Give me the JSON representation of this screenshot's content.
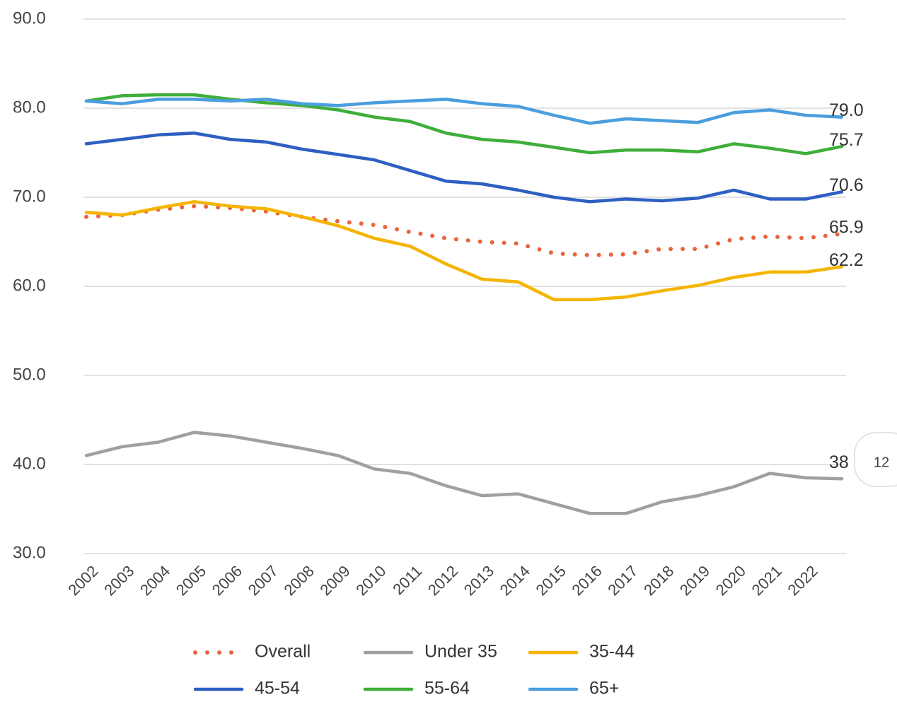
{
  "chart_data": {
    "type": "line",
    "categories": [
      "2002",
      "2003",
      "2004",
      "2005",
      "2006",
      "2007",
      "2008",
      "2009",
      "2010",
      "2011",
      "2012",
      "2013",
      "2014",
      "2015",
      "2016",
      "2017",
      "2018",
      "2019",
      "2020",
      "2021",
      "2022",
      null
    ],
    "series": [
      {
        "name": "Overall",
        "color": "#e8643c",
        "dash": "dotted",
        "values": [
          67.8,
          68.0,
          68.6,
          69.0,
          68.8,
          68.4,
          67.8,
          67.3,
          66.9,
          66.1,
          65.4,
          65.0,
          64.8,
          63.7,
          63.5,
          63.6,
          64.2,
          64.2,
          65.3,
          65.6,
          65.4,
          65.9
        ],
        "value_labels": [
          null,
          null,
          null,
          null,
          null,
          null,
          null,
          null,
          null,
          null,
          null,
          null,
          null,
          null,
          null,
          null,
          null,
          null,
          null,
          null,
          null,
          "65.9"
        ]
      },
      {
        "name": "Under 35",
        "color": "#a0a0a0",
        "values": [
          41.0,
          42.0,
          42.5,
          43.6,
          43.2,
          42.5,
          41.8,
          41.0,
          39.5,
          39.0,
          37.6,
          36.5,
          36.7,
          35.6,
          34.5,
          34.5,
          35.8,
          36.5,
          37.5,
          39.0,
          38.5,
          38.4
        ],
        "value_labels": [
          null,
          null,
          null,
          null,
          null,
          null,
          null,
          null,
          null,
          null,
          null,
          null,
          null,
          null,
          null,
          null,
          null,
          null,
          null,
          null,
          null,
          "38"
        ]
      },
      {
        "name": "35-44",
        "color": "#f5b400",
        "values": [
          68.3,
          68.0,
          68.8,
          69.5,
          69.0,
          68.7,
          67.8,
          66.8,
          65.4,
          64.5,
          62.5,
          60.8,
          60.5,
          58.5,
          58.5,
          58.8,
          59.5,
          60.1,
          61.0,
          61.6,
          61.6,
          62.2
        ],
        "value_labels": [
          null,
          null,
          null,
          null,
          null,
          null,
          null,
          null,
          null,
          null,
          null,
          null,
          null,
          null,
          null,
          null,
          null,
          null,
          null,
          null,
          null,
          "62.2"
        ]
      },
      {
        "name": "45-54",
        "color": "#2e5fc2",
        "values": [
          76.0,
          76.5,
          77.0,
          77.2,
          76.5,
          76.2,
          75.4,
          74.8,
          74.2,
          73.0,
          71.8,
          71.5,
          70.8,
          70.0,
          69.5,
          69.8,
          69.6,
          69.9,
          70.8,
          69.8,
          69.8,
          70.6
        ],
        "value_labels": [
          null,
          null,
          null,
          null,
          null,
          null,
          null,
          null,
          null,
          null,
          null,
          null,
          null,
          null,
          null,
          null,
          null,
          null,
          null,
          null,
          null,
          "70.6"
        ]
      },
      {
        "name": "55-64",
        "color": "#3fae3a",
        "values": [
          80.8,
          81.4,
          81.5,
          81.5,
          81.0,
          80.6,
          80.3,
          79.8,
          79.0,
          78.5,
          77.2,
          76.5,
          76.2,
          75.6,
          75.0,
          75.3,
          75.3,
          75.1,
          76.0,
          75.5,
          74.9,
          75.7
        ],
        "value_labels": [
          null,
          null,
          null,
          null,
          null,
          null,
          null,
          null,
          null,
          null,
          null,
          null,
          null,
          null,
          null,
          null,
          null,
          null,
          null,
          null,
          null,
          "75.7"
        ]
      },
      {
        "name": "65+",
        "color": "#4a9ede",
        "values": [
          80.8,
          80.5,
          81.0,
          81.0,
          80.8,
          81.0,
          80.5,
          80.3,
          80.6,
          80.8,
          81.0,
          80.5,
          80.2,
          79.2,
          78.3,
          78.8,
          78.6,
          78.4,
          79.5,
          79.8,
          79.2,
          79.0
        ],
        "value_labels": [
          null,
          null,
          null,
          null,
          null,
          null,
          null,
          null,
          null,
          null,
          null,
          null,
          null,
          null,
          null,
          null,
          null,
          null,
          null,
          null,
          null,
          "79.0"
        ]
      }
    ],
    "ylim": [
      30,
      90
    ],
    "yticks": [
      {
        "value": 30,
        "label": "30.0"
      },
      {
        "value": 40,
        "label": "40.0"
      },
      {
        "value": 50,
        "label": "50.0"
      },
      {
        "value": 60,
        "label": "60.0"
      },
      {
        "value": 70,
        "label": "70.0"
      },
      {
        "value": 80,
        "label": "80.0"
      },
      {
        "value": 90,
        "label": "90.0"
      }
    ],
    "grid": true,
    "legend": "bottom"
  },
  "badge": "12"
}
